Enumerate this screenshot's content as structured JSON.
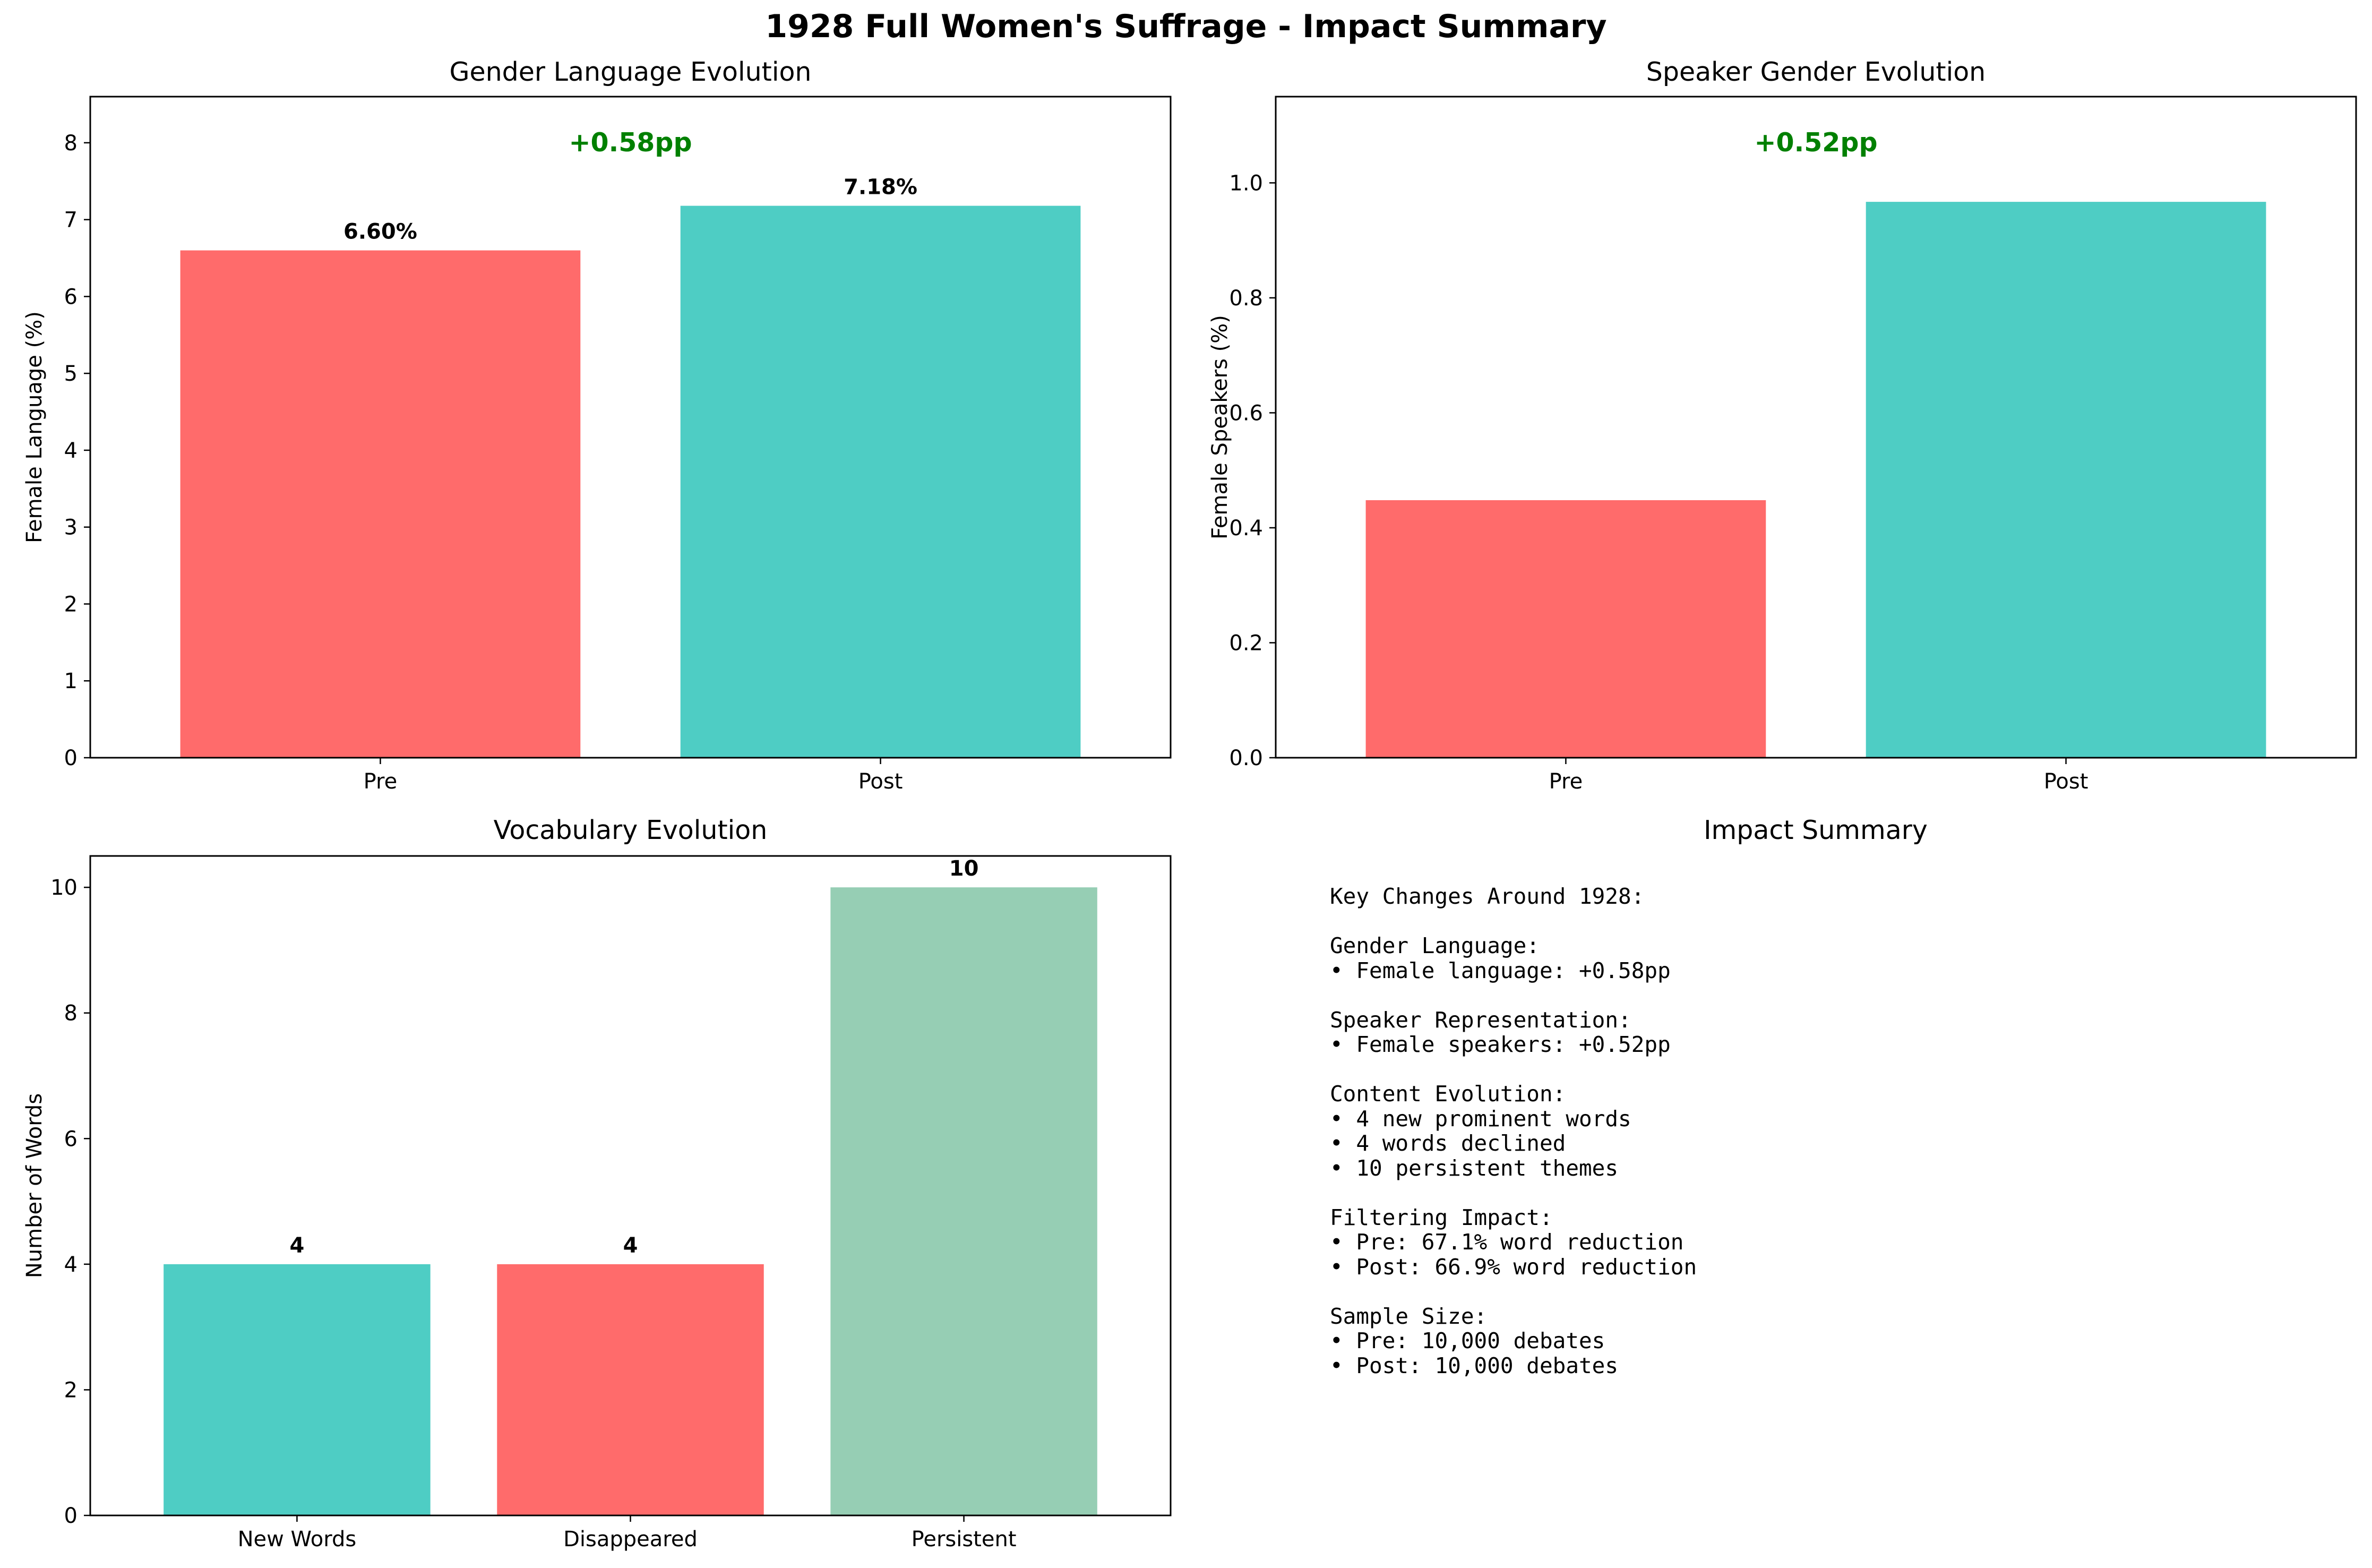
{
  "figure_title": "1928 Full Women's Suffrage - Impact Summary",
  "colors": {
    "pre": "#FF6B6B",
    "post": "#4ECDC4",
    "persistent": "#96CEB4",
    "annotation": "#008000",
    "axis": "#000000"
  },
  "chart_data": [
    {
      "type": "bar",
      "title": "Gender Language Evolution",
      "xlabel": "",
      "ylabel": "Female Language (%)",
      "categories": [
        "Pre",
        "Post"
      ],
      "values": [
        6.6,
        7.18
      ],
      "colors": [
        "#FF6B6B",
        "#4ECDC4"
      ],
      "ylim": [
        0,
        8.6
      ],
      "yticks": [
        0,
        1,
        2,
        3,
        4,
        5,
        6,
        7,
        8
      ],
      "ytick_labels": [
        "0",
        "1",
        "2",
        "3",
        "4",
        "5",
        "6",
        "7",
        "8"
      ],
      "value_labels": [
        "6.60%",
        "7.18%"
      ],
      "annotation": "+0.58pp",
      "grid": false,
      "legend": "none"
    },
    {
      "type": "bar",
      "title": "Speaker Gender Evolution",
      "xlabel": "",
      "ylabel": "Female Speakers (%)",
      "categories": [
        "Pre",
        "Post"
      ],
      "values": [
        0.448,
        0.967
      ],
      "colors": [
        "#FF6B6B",
        "#4ECDC4"
      ],
      "ylim": [
        0,
        1.15
      ],
      "yticks": [
        0,
        0.2,
        0.4,
        0.6,
        0.8,
        1.0
      ],
      "ytick_labels": [
        "0.0",
        "0.2",
        "0.4",
        "0.6",
        "0.8",
        "1.0"
      ],
      "value_labels": [],
      "annotation": "+0.52pp",
      "grid": false,
      "legend": "none"
    },
    {
      "type": "bar",
      "title": "Vocabulary Evolution",
      "xlabel": "",
      "ylabel": "Number of Words",
      "categories": [
        "New Words",
        "Disappeared",
        "Persistent"
      ],
      "values": [
        4,
        4,
        10
      ],
      "colors": [
        "#4ECDC4",
        "#FF6B6B",
        "#96CEB4"
      ],
      "ylim": [
        0,
        10.5
      ],
      "yticks": [
        0,
        2,
        4,
        6,
        8,
        10
      ],
      "ytick_labels": [
        "0",
        "2",
        "4",
        "6",
        "8",
        "10"
      ],
      "value_labels": [
        "4",
        "4",
        "10"
      ],
      "annotation": "",
      "grid": false,
      "legend": "none"
    }
  ],
  "summary": {
    "title": "Impact Summary",
    "lines": [
      "Key Changes Around 1928:",
      "",
      "Gender Language:",
      "• Female language: +0.58pp",
      "",
      "Speaker Representation:",
      "• Female speakers: +0.52pp",
      "",
      "Content Evolution:",
      "• 4 new prominent words",
      "• 4 words declined",
      "• 10 persistent themes",
      "",
      "Filtering Impact:",
      "• Pre: 67.1% word reduction",
      "• Post: 66.9% word reduction",
      "",
      "Sample Size:",
      "• Pre: 10,000 debates",
      "• Post: 10,000 debates"
    ]
  }
}
